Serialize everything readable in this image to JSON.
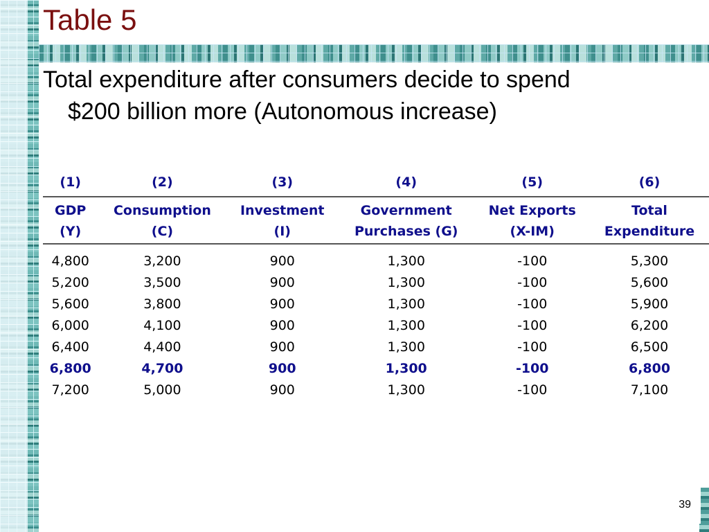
{
  "title": "Table 5",
  "subtitle": {
    "line1": "Total expenditure after consumers decide to spend",
    "line2": "$200 billion more (Autonomous increase)"
  },
  "table": {
    "column_numbers": [
      "(1)",
      "(2)",
      "(3)",
      "(4)",
      "(5)",
      "(6)"
    ],
    "headers": [
      {
        "line1": "GDP",
        "line2": "(Y)"
      },
      {
        "line1": "Consumption",
        "line2": "(C)"
      },
      {
        "line1": "Investment",
        "line2": "(I)"
      },
      {
        "line1": "Government",
        "line2": "Purchases (G)"
      },
      {
        "line1": "Net Exports",
        "line2": "(X-IM)"
      },
      {
        "line1": "Total",
        "line2": "Expenditure"
      }
    ],
    "rows": [
      [
        "4,800",
        "3,200",
        "900",
        "1,300",
        "-100",
        "5,300"
      ],
      [
        "5,200",
        "3,500",
        "900",
        "1,300",
        "-100",
        "5,600"
      ],
      [
        "5,600",
        "3,800",
        "900",
        "1,300",
        "-100",
        "5,900"
      ],
      [
        "6,000",
        "4,100",
        "900",
        "1,300",
        "-100",
        "6,200"
      ],
      [
        "6,400",
        "4,400",
        "900",
        "1,300",
        "-100",
        "6,500"
      ],
      [
        "6,800",
        "4,700",
        "900",
        "1,300",
        "-100",
        "6,800"
      ],
      [
        "7,200",
        "5,000",
        "900",
        "1,300",
        "-100",
        "7,100"
      ]
    ],
    "highlight_row_index": 5,
    "header_color": "#0f0f8c"
  },
  "page_number": "39",
  "colors": {
    "title": "#7a0f0f",
    "accent_teal": "#3d8f8d"
  }
}
